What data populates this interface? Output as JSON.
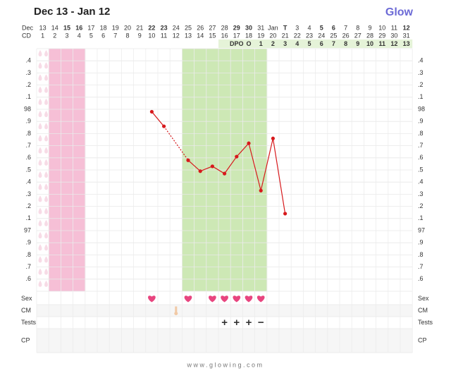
{
  "chart_data": {
    "type": "bbt",
    "title": "Dec 13 - Jan 12",
    "brand": "Glow",
    "footer": "www.glowing.com",
    "month_label": "Dec",
    "cd_label": "CD",
    "days": [
      "13",
      "14",
      "15",
      "16",
      "17",
      "18",
      "19",
      "20",
      "21",
      "22",
      "23",
      "24",
      "25",
      "26",
      "27",
      "28",
      "29",
      "30",
      "31",
      "Jan",
      "T",
      "3",
      "4",
      "5",
      "6",
      "7",
      "8",
      "9",
      "10",
      "11",
      "12"
    ],
    "weekend": [
      false,
      false,
      true,
      true,
      false,
      false,
      false,
      false,
      false,
      true,
      true,
      false,
      false,
      false,
      false,
      false,
      true,
      true,
      false,
      false,
      false,
      false,
      false,
      true,
      true,
      false,
      false,
      false,
      false,
      false,
      true
    ],
    "today": [
      false,
      false,
      false,
      false,
      false,
      false,
      false,
      false,
      false,
      false,
      false,
      false,
      false,
      false,
      false,
      false,
      false,
      false,
      false,
      false,
      true,
      false,
      false,
      false,
      false,
      false,
      false,
      false,
      false,
      false,
      false
    ],
    "weekend_color": "#e0453a",
    "today_color": "#4b5bd1",
    "cd": [
      "1",
      "2",
      "3",
      "4",
      "5",
      "6",
      "7",
      "8",
      "9",
      "10",
      "11",
      "12",
      "13",
      "14",
      "15",
      "16",
      "17",
      "18",
      "19",
      "20",
      "21",
      "22",
      "23",
      "24",
      "25",
      "26",
      "27",
      "28",
      "29",
      "30",
      "31"
    ],
    "dpo": [
      null,
      null,
      null,
      null,
      null,
      null,
      null,
      null,
      null,
      null,
      null,
      null,
      null,
      null,
      null,
      null,
      "DPO",
      "O",
      "1",
      "2",
      "3",
      "4",
      "5",
      "6",
      "7",
      "8",
      "9",
      "10",
      "11",
      "12",
      "13"
    ],
    "period": [
      false,
      true,
      true,
      true,
      false,
      false,
      false,
      false,
      false,
      false,
      false,
      false,
      false,
      false,
      false,
      false,
      false,
      false,
      false,
      false,
      false,
      false,
      false,
      false,
      false,
      false,
      false,
      false,
      false,
      false,
      false
    ],
    "fertile": [
      false,
      false,
      false,
      false,
      false,
      false,
      false,
      false,
      false,
      false,
      false,
      false,
      true,
      true,
      true,
      true,
      true,
      true,
      true,
      false,
      false,
      false,
      false,
      false,
      false,
      false,
      false,
      false,
      false,
      false,
      false
    ],
    "period_color": "#f6bfd6",
    "fertile_color": "#cde8b5",
    "temps": [
      null,
      null,
      null,
      null,
      null,
      null,
      null,
      null,
      null,
      97.98,
      97.86,
      null,
      97.58,
      97.49,
      97.53,
      97.47,
      97.61,
      97.72,
      97.33,
      97.76,
      97.14,
      null,
      null,
      null,
      null,
      null,
      null,
      null,
      null,
      null,
      null
    ],
    "line_color": "#d7191c",
    "ylim": [
      96.5,
      98.5
    ],
    "yticks": [
      {
        "value": 98.4,
        "label": ".4"
      },
      {
        "value": 98.3,
        "label": ".3"
      },
      {
        "value": 98.2,
        "label": ".2"
      },
      {
        "value": 98.1,
        "label": ".1"
      },
      98,
      {
        "value": 97.9,
        "label": ".9"
      },
      {
        "value": 97.8,
        "label": ".8"
      },
      {
        "value": 97.7,
        "label": ".7"
      },
      {
        "value": 97.6,
        "label": ".6"
      },
      {
        "value": 97.5,
        "label": ".5"
      },
      {
        "value": 97.4,
        "label": ".4"
      },
      {
        "value": 97.3,
        "label": ".3"
      },
      {
        "value": 97.2,
        "label": ".2"
      },
      {
        "value": 97.1,
        "label": ".1"
      },
      97,
      {
        "value": 96.9,
        "label": ".9"
      },
      {
        "value": 96.8,
        "label": ".8"
      },
      {
        "value": 96.7,
        "label": ".7"
      },
      {
        "value": 96.6,
        "label": ".6"
      }
    ],
    "grid": true,
    "rows": [
      "Sex",
      "CM",
      "Tests",
      "CP"
    ],
    "sex": [
      false,
      false,
      false,
      false,
      false,
      false,
      false,
      false,
      false,
      true,
      false,
      false,
      true,
      false,
      true,
      true,
      true,
      true,
      true,
      false,
      false,
      false,
      false,
      false,
      false,
      false,
      false,
      false,
      false,
      false,
      false
    ],
    "cm": [
      false,
      false,
      false,
      false,
      false,
      false,
      false,
      false,
      false,
      false,
      false,
      true,
      false,
      false,
      false,
      false,
      false,
      false,
      false,
      false,
      false,
      false,
      false,
      false,
      false,
      false,
      false,
      false,
      false,
      false,
      false
    ],
    "tests": [
      null,
      null,
      null,
      null,
      null,
      null,
      null,
      null,
      null,
      null,
      null,
      null,
      null,
      null,
      null,
      "+",
      "+",
      "+",
      "−",
      null,
      null,
      null,
      null,
      null,
      null,
      null,
      null,
      null,
      null,
      null,
      null
    ],
    "heart_color": "#e8457f",
    "test_color": "#5cb82e"
  }
}
